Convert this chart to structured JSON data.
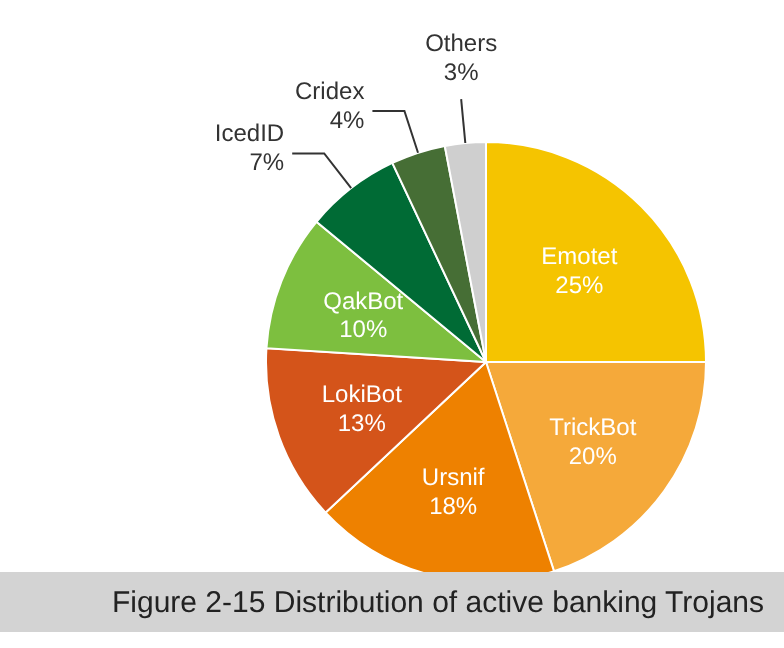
{
  "chart_data": {
    "type": "pie",
    "title": "Figure 2-15 Distribution of active banking Trojans",
    "categories": [
      "Emotet",
      "TrickBot",
      "Ursnif",
      "LokiBot",
      "QakBot",
      "IcedID",
      "Cridex",
      "Others"
    ],
    "values": [
      25,
      20,
      18,
      13,
      10,
      7,
      4,
      3
    ],
    "value_labels": [
      "25%",
      "20%",
      "18%",
      "13%",
      "10%",
      "7%",
      "4%",
      "3%"
    ],
    "colors": [
      "#f5c400",
      "#f5a93a",
      "#ee8100",
      "#d4541a",
      "#7dbf3f",
      "#006b35",
      "#466e35",
      "#cfcfcf"
    ]
  }
}
